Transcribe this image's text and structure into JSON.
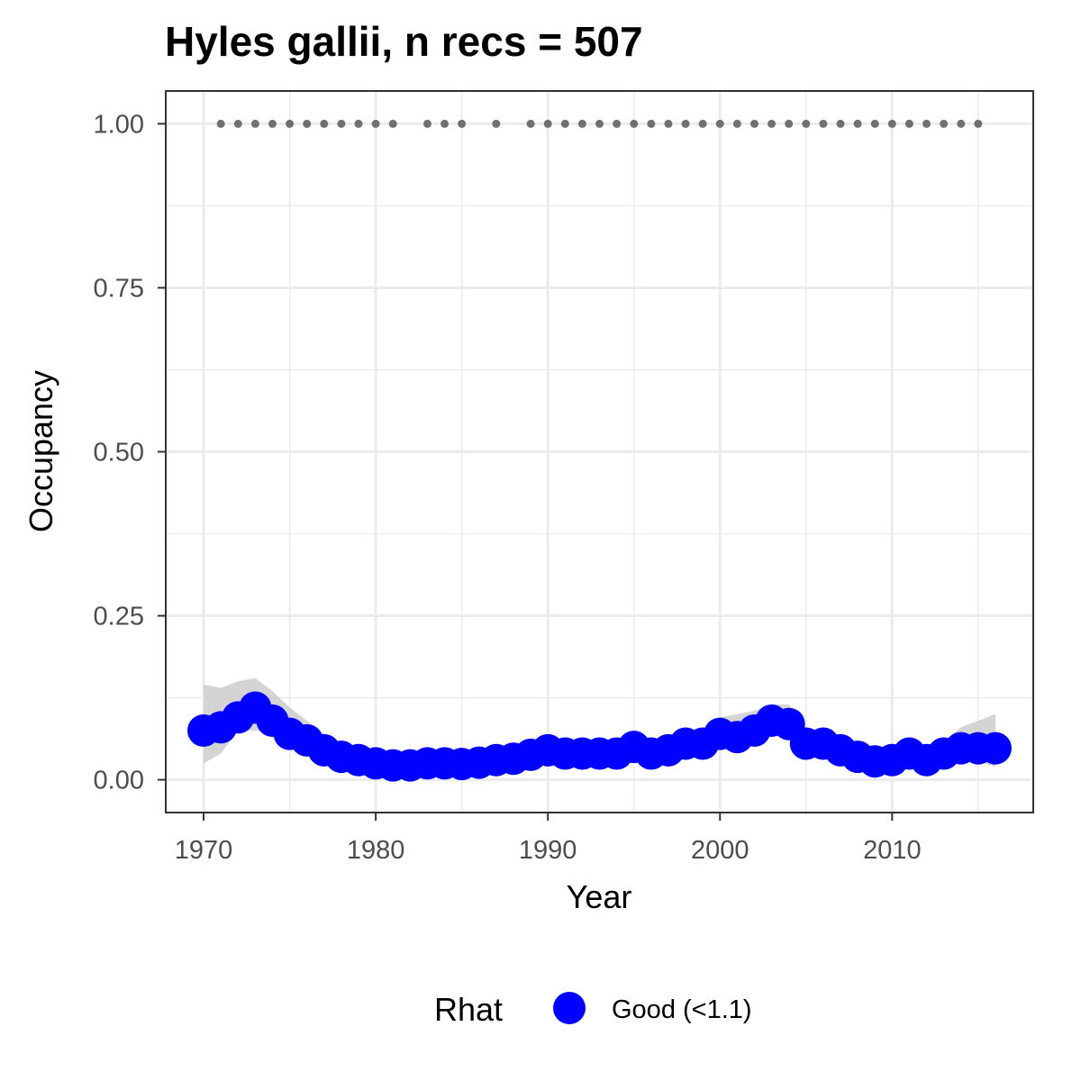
{
  "chart_data": {
    "type": "line",
    "title": "Hyles gallii, n recs = 507",
    "xlabel": "Year",
    "ylabel": "Occupancy",
    "xlim": [
      1967.8,
      2018.2
    ],
    "ylim": [
      -0.05,
      1.05
    ],
    "x_ticks": [
      1970,
      1980,
      1990,
      2000,
      2010
    ],
    "x_tick_labels": [
      "1970",
      "1980",
      "1990",
      "2000",
      "2010"
    ],
    "y_ticks": [
      0,
      0.25,
      0.5,
      0.75,
      1
    ],
    "y_tick_labels": [
      "0.00",
      "0.25",
      "0.50",
      "0.75",
      "1.00"
    ],
    "grid": true,
    "legend": {
      "title": "Rhat",
      "position": "bottom",
      "entries": [
        {
          "label": "Good (<1.1)",
          "color": "#0000ff"
        }
      ]
    },
    "colors": {
      "series": "#0000ff",
      "ribbon": "#cccccc",
      "records": "#707070",
      "grid": "#ebebeb",
      "border": "#333333"
    },
    "series": [
      {
        "name": "Good (<1.1)",
        "x": [
          1970,
          1971,
          1972,
          1973,
          1974,
          1975,
          1976,
          1977,
          1978,
          1979,
          1980,
          1981,
          1982,
          1983,
          1984,
          1985,
          1986,
          1987,
          1988,
          1989,
          1990,
          1991,
          1992,
          1993,
          1994,
          1995,
          1996,
          1997,
          1998,
          1999,
          2000,
          2001,
          2002,
          2003,
          2004,
          2005,
          2006,
          2007,
          2008,
          2009,
          2010,
          2011,
          2012,
          2013,
          2014,
          2015,
          2016
        ],
        "y": [
          0.075,
          0.08,
          0.095,
          0.11,
          0.09,
          0.07,
          0.06,
          0.045,
          0.035,
          0.03,
          0.025,
          0.022,
          0.022,
          0.025,
          0.025,
          0.024,
          0.026,
          0.03,
          0.032,
          0.038,
          0.045,
          0.04,
          0.04,
          0.04,
          0.04,
          0.05,
          0.04,
          0.045,
          0.055,
          0.055,
          0.07,
          0.065,
          0.075,
          0.09,
          0.085,
          0.055,
          0.055,
          0.045,
          0.035,
          0.028,
          0.03,
          0.04,
          0.03,
          0.04,
          0.048,
          0.048,
          0.048
        ],
        "lower": [
          0.025,
          0.04,
          0.075,
          0.075,
          0.075,
          0.06,
          0.05,
          0.035,
          0.025,
          0.02,
          0.015,
          0.013,
          0.013,
          0.016,
          0.016,
          0.015,
          0.016,
          0.02,
          0.022,
          0.028,
          0.035,
          0.03,
          0.03,
          0.03,
          0.03,
          0.04,
          0.03,
          0.035,
          0.045,
          0.045,
          0.058,
          0.052,
          0.062,
          0.075,
          0.06,
          0.045,
          0.043,
          0.033,
          0.024,
          0.018,
          0.02,
          0.03,
          0.02,
          0.028,
          0.034,
          0.028,
          0.02
        ],
        "upper": [
          0.145,
          0.14,
          0.15,
          0.155,
          0.135,
          0.11,
          0.09,
          0.07,
          0.055,
          0.045,
          0.038,
          0.034,
          0.033,
          0.036,
          0.036,
          0.035,
          0.037,
          0.042,
          0.045,
          0.052,
          0.06,
          0.055,
          0.055,
          0.055,
          0.055,
          0.065,
          0.055,
          0.06,
          0.072,
          0.075,
          0.095,
          0.1,
          0.105,
          0.115,
          0.115,
          0.075,
          0.07,
          0.06,
          0.05,
          0.042,
          0.045,
          0.055,
          0.045,
          0.058,
          0.08,
          0.09,
          0.1
        ]
      }
    ],
    "record_years": {
      "y": 1,
      "x": [
        1971,
        1972,
        1973,
        1974,
        1975,
        1976,
        1977,
        1978,
        1979,
        1980,
        1981,
        1983,
        1984,
        1985,
        1987,
        1989,
        1990,
        1991,
        1992,
        1993,
        1994,
        1995,
        1996,
        1997,
        1998,
        1999,
        2000,
        2001,
        2002,
        2003,
        2004,
        2005,
        2006,
        2007,
        2008,
        2009,
        2010,
        2011,
        2012,
        2013,
        2014,
        2015
      ]
    }
  }
}
